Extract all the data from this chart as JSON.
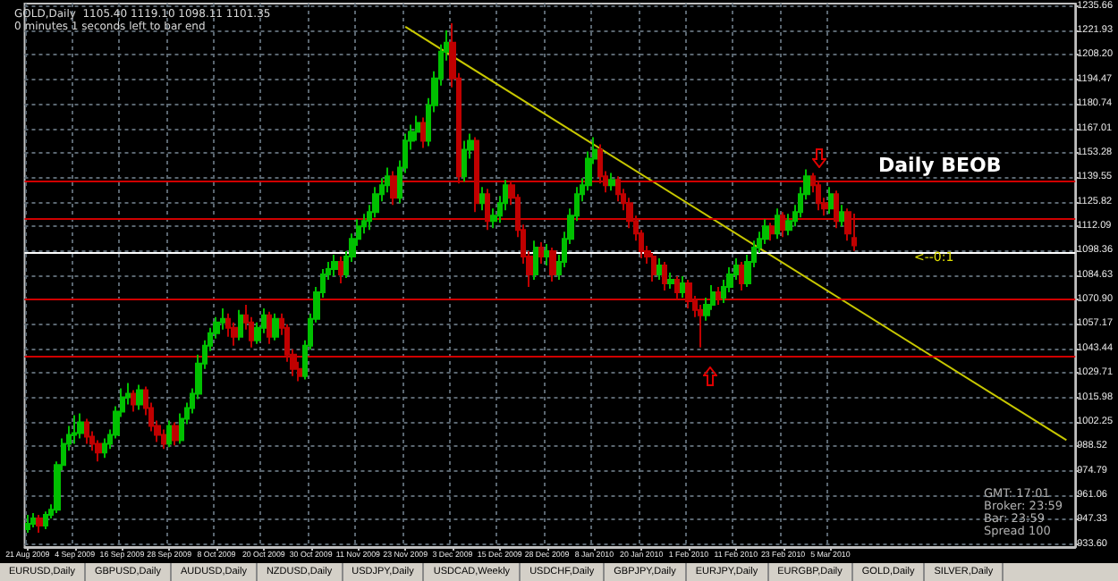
{
  "chart_data": {
    "type": "candlestick",
    "title": "GOLD,Daily  1105.40 1119.10 1098.11 1101.35",
    "subtitle": "0 minutes 1 seconds left to bar end",
    "categories": [
      "21 Aug 2009",
      null,
      null,
      null,
      null,
      null,
      null,
      null,
      "4 Sep 2009",
      null,
      null,
      null,
      null,
      null,
      null,
      null,
      "16 Sep 2009",
      null,
      null,
      null,
      null,
      null,
      null,
      null,
      "28 Sep 2009",
      null,
      null,
      null,
      null,
      null,
      null,
      null,
      "8 Oct 2009",
      null,
      null,
      null,
      null,
      null,
      null,
      null,
      "20 Oct 2009",
      null,
      null,
      null,
      null,
      null,
      null,
      null,
      "30 Oct 2009",
      null,
      null,
      null,
      null,
      null,
      null,
      null,
      "11 Nov 2009",
      null,
      null,
      null,
      null,
      null,
      null,
      null,
      "23 Nov 2009",
      null,
      null,
      null,
      null,
      null,
      null,
      null,
      "3 Dec 2009",
      null,
      null,
      null,
      null,
      null,
      null,
      null,
      "15 Dec 2009",
      null,
      null,
      null,
      null,
      null,
      null,
      null,
      "28 Dec 2009",
      null,
      null,
      null,
      null,
      null,
      null,
      null,
      "8 Jan 2010",
      null,
      null,
      null,
      null,
      null,
      null,
      null,
      "20 Jan 2010",
      null,
      null,
      null,
      null,
      null,
      null,
      null,
      "1 Feb 2010",
      null,
      null,
      null,
      null,
      null,
      null,
      null,
      "11 Feb 2010",
      null,
      null,
      null,
      null,
      null,
      null,
      null,
      "23 Feb 2010",
      null,
      null,
      null,
      null,
      null,
      null,
      null,
      "5 Mar 2010",
      null,
      null,
      null,
      null,
      null,
      null,
      null,
      null,
      null,
      null,
      null,
      null,
      null,
      null,
      null,
      null,
      null,
      null,
      null,
      null,
      null,
      null,
      null,
      null,
      null,
      null,
      null,
      null,
      null,
      null,
      null,
      null,
      null,
      null,
      null,
      null,
      null,
      null,
      null,
      null,
      null
    ],
    "series": [
      {
        "ohlc": [
          [
            942,
            950,
            940,
            945
          ],
          [
            945,
            951,
            943,
            948
          ],
          [
            948,
            950,
            940,
            944
          ],
          [
            944,
            952,
            942,
            950
          ],
          [
            950,
            956,
            948,
            953
          ],
          [
            953,
            980,
            951,
            978
          ],
          [
            978,
            993,
            975,
            990
          ],
          [
            990,
            1000,
            986,
            995
          ],
          [
            995,
            1006,
            990,
            996
          ],
          [
            996,
            1007,
            993,
            1002
          ],
          [
            1002,
            1004,
            990,
            994
          ],
          [
            994,
            997,
            986,
            990
          ],
          [
            990,
            992,
            980,
            985
          ],
          [
            985,
            993,
            982,
            990
          ],
          [
            990,
            998,
            987,
            995
          ],
          [
            995,
            1011,
            993,
            1008
          ],
          [
            1008,
            1021,
            1005,
            1016
          ],
          [
            1016,
            1024,
            1012,
            1018
          ],
          [
            1018,
            1020,
            1008,
            1012
          ],
          [
            1012,
            1023,
            1009,
            1020
          ],
          [
            1020,
            1022,
            1006,
            1010
          ],
          [
            1010,
            1013,
            997,
            1000
          ],
          [
            1000,
            1003,
            991,
            995
          ],
          [
            995,
            998,
            987,
            990
          ],
          [
            990,
            1003,
            988,
            1000
          ],
          [
            1000,
            1002,
            989,
            992
          ],
          [
            992,
            1007,
            990,
            1004
          ],
          [
            1004,
            1013,
            1001,
            1010
          ],
          [
            1010,
            1021,
            1007,
            1018
          ],
          [
            1018,
            1040,
            1015,
            1035
          ],
          [
            1035,
            1048,
            1032,
            1045
          ],
          [
            1045,
            1055,
            1042,
            1052
          ],
          [
            1052,
            1061,
            1049,
            1058
          ],
          [
            1058,
            1066,
            1054,
            1060
          ],
          [
            1060,
            1063,
            1050,
            1055
          ],
          [
            1055,
            1058,
            1045,
            1050
          ],
          [
            1050,
            1065,
            1048,
            1062
          ],
          [
            1062,
            1068,
            1054,
            1058
          ],
          [
            1058,
            1061,
            1044,
            1048
          ],
          [
            1048,
            1058,
            1046,
            1055
          ],
          [
            1055,
            1066,
            1052,
            1062
          ],
          [
            1062,
            1064,
            1046,
            1050
          ],
          [
            1050,
            1063,
            1048,
            1060
          ],
          [
            1060,
            1063,
            1051,
            1055
          ],
          [
            1055,
            1057,
            1036,
            1040
          ],
          [
            1040,
            1043,
            1028,
            1032
          ],
          [
            1032,
            1036,
            1025,
            1028
          ],
          [
            1028,
            1048,
            1026,
            1045
          ],
          [
            1045,
            1063,
            1043,
            1060
          ],
          [
            1060,
            1078,
            1058,
            1075
          ],
          [
            1075,
            1088,
            1072,
            1085
          ],
          [
            1085,
            1092,
            1082,
            1088
          ],
          [
            1088,
            1096,
            1084,
            1092
          ],
          [
            1092,
            1095,
            1080,
            1085
          ],
          [
            1085,
            1098,
            1083,
            1095
          ],
          [
            1095,
            1108,
            1092,
            1105
          ],
          [
            1105,
            1116,
            1101,
            1112
          ],
          [
            1112,
            1119,
            1108,
            1115
          ],
          [
            1115,
            1124,
            1110,
            1120
          ],
          [
            1120,
            1134,
            1117,
            1130
          ],
          [
            1130,
            1139,
            1126,
            1135
          ],
          [
            1135,
            1145,
            1131,
            1140
          ],
          [
            1140,
            1143,
            1124,
            1128
          ],
          [
            1128,
            1149,
            1125,
            1145
          ],
          [
            1145,
            1164,
            1142,
            1160
          ],
          [
            1160,
            1169,
            1155,
            1165
          ],
          [
            1165,
            1174,
            1160,
            1170
          ],
          [
            1170,
            1173,
            1156,
            1160
          ],
          [
            1160,
            1184,
            1157,
            1180
          ],
          [
            1180,
            1199,
            1176,
            1195
          ],
          [
            1195,
            1214,
            1191,
            1210
          ],
          [
            1210,
            1222,
            1205,
            1215
          ],
          [
            1215,
            1226,
            1190,
            1195
          ],
          [
            1195,
            1198,
            1136,
            1140
          ],
          [
            1140,
            1160,
            1137,
            1155
          ],
          [
            1155,
            1164,
            1150,
            1160
          ],
          [
            1160,
            1162,
            1120,
            1125
          ],
          [
            1125,
            1134,
            1121,
            1130
          ],
          [
            1130,
            1133,
            1110,
            1115
          ],
          [
            1115,
            1122,
            1111,
            1118
          ],
          [
            1118,
            1129,
            1114,
            1125
          ],
          [
            1125,
            1138,
            1121,
            1135
          ],
          [
            1135,
            1137,
            1124,
            1128
          ],
          [
            1128,
            1130,
            1106,
            1110
          ],
          [
            1110,
            1113,
            1091,
            1095
          ],
          [
            1095,
            1098,
            1078,
            1085
          ],
          [
            1085,
            1104,
            1082,
            1100
          ],
          [
            1100,
            1103,
            1091,
            1095
          ],
          [
            1095,
            1102,
            1090,
            1098
          ],
          [
            1098,
            1100,
            1081,
            1085
          ],
          [
            1085,
            1096,
            1082,
            1092
          ],
          [
            1092,
            1109,
            1089,
            1105
          ],
          [
            1105,
            1122,
            1102,
            1118
          ],
          [
            1118,
            1134,
            1115,
            1130
          ],
          [
            1130,
            1139,
            1126,
            1135
          ],
          [
            1135,
            1154,
            1132,
            1150
          ],
          [
            1150,
            1162,
            1147,
            1155
          ],
          [
            1155,
            1158,
            1136,
            1140
          ],
          [
            1140,
            1143,
            1131,
            1135
          ],
          [
            1135,
            1142,
            1132,
            1138
          ],
          [
            1138,
            1140,
            1126,
            1130
          ],
          [
            1130,
            1133,
            1121,
            1125
          ],
          [
            1125,
            1128,
            1111,
            1115
          ],
          [
            1115,
            1118,
            1104,
            1108
          ],
          [
            1108,
            1110,
            1094,
            1098
          ],
          [
            1098,
            1101,
            1091,
            1095
          ],
          [
            1095,
            1097,
            1081,
            1085
          ],
          [
            1085,
            1094,
            1082,
            1090
          ],
          [
            1090,
            1092,
            1076,
            1080
          ],
          [
            1080,
            1086,
            1077,
            1082
          ],
          [
            1082,
            1084,
            1071,
            1075
          ],
          [
            1075,
            1084,
            1072,
            1080
          ],
          [
            1080,
            1082,
            1066,
            1070
          ],
          [
            1070,
            1073,
            1061,
            1065
          ],
          [
            1065,
            1068,
            1044,
            1062
          ],
          [
            1062,
            1072,
            1059,
            1068
          ],
          [
            1068,
            1079,
            1065,
            1075
          ],
          [
            1075,
            1078,
            1068,
            1072
          ],
          [
            1072,
            1082,
            1069,
            1078
          ],
          [
            1078,
            1089,
            1075,
            1085
          ],
          [
            1085,
            1094,
            1082,
            1090
          ],
          [
            1090,
            1092,
            1076,
            1080
          ],
          [
            1080,
            1096,
            1078,
            1092
          ],
          [
            1092,
            1104,
            1089,
            1100
          ],
          [
            1100,
            1109,
            1097,
            1105
          ],
          [
            1105,
            1116,
            1102,
            1112
          ],
          [
            1112,
            1114,
            1104,
            1108
          ],
          [
            1108,
            1122,
            1105,
            1118
          ],
          [
            1118,
            1120,
            1106,
            1110
          ],
          [
            1110,
            1119,
            1107,
            1115
          ],
          [
            1115,
            1124,
            1112,
            1120
          ],
          [
            1120,
            1134,
            1117,
            1130
          ],
          [
            1130,
            1144,
            1127,
            1140
          ],
          [
            1140,
            1142,
            1131,
            1135
          ],
          [
            1135,
            1137,
            1121,
            1125
          ],
          [
            1125,
            1128,
            1118,
            1122
          ],
          [
            1122,
            1134,
            1119,
            1130
          ],
          [
            1130,
            1132,
            1111,
            1115
          ],
          [
            1115,
            1124,
            1112,
            1120
          ],
          [
            1120,
            1122,
            1104,
            1108
          ],
          [
            1105.4,
            1119.1,
            1098.11,
            1101.35
          ],
          null,
          null,
          null,
          null,
          null,
          null,
          null,
          null,
          null,
          null,
          null,
          null,
          null,
          null,
          null,
          null,
          null,
          null,
          null,
          null,
          null,
          null,
          null,
          null,
          null,
          null,
          null,
          null,
          null,
          null,
          null,
          null,
          null,
          null,
          null,
          null,
          null
        ],
        "colors": [
          "#00c000",
          "#00c000",
          "#c00000",
          "#00c000",
          "#00c000",
          "#00c000",
          "#00c000",
          "#00c000",
          "#00c000",
          "#00c000",
          "#c00000",
          "#c00000",
          "#c00000",
          "#00c000",
          "#00c000",
          "#00c000",
          "#00c000",
          "#00c000",
          "#c00000",
          "#00c000",
          "#c00000",
          "#c00000",
          "#c00000",
          "#c00000",
          "#00c000",
          "#c00000",
          "#00c000",
          "#00c000",
          "#00c000",
          "#00c000",
          "#00c000",
          "#00c000",
          "#00c000",
          "#00c000",
          "#c00000",
          "#c00000",
          "#00c000",
          "#c00000",
          "#c00000",
          "#00c000",
          "#00c000",
          "#c00000",
          "#00c000",
          "#c00000",
          "#c00000",
          "#c00000",
          "#c00000",
          "#00c000",
          "#00c000",
          "#00c000",
          "#00c000",
          "#00c000",
          "#00c000",
          "#c00000",
          "#00c000",
          "#00c000",
          "#00c000",
          "#00c000",
          "#00c000",
          "#00c000",
          "#00c000",
          "#00c000",
          "#c00000",
          "#00c000",
          "#00c000",
          "#00c000",
          "#00c000",
          "#c00000",
          "#00c000",
          "#00c000",
          "#00c000",
          "#00c000",
          "#c00000",
          "#c00000",
          "#00c000",
          "#00c000",
          "#c00000",
          "#00c000",
          "#c00000",
          "#00c000",
          "#00c000",
          "#00c000",
          "#c00000",
          "#c00000",
          "#c00000",
          "#c00000",
          "#00c000",
          "#c00000",
          "#00c000",
          "#c00000",
          "#00c000",
          "#00c000",
          "#00c000",
          "#00c000",
          "#00c000",
          "#00c000",
          "#00c000",
          "#c00000",
          "#c00000",
          "#00c000",
          "#c00000",
          "#c00000",
          "#c00000",
          "#c00000",
          "#c00000",
          "#c00000",
          "#c00000",
          "#00c000",
          "#c00000",
          "#00c000",
          "#c00000",
          "#00c000",
          "#c00000",
          "#c00000",
          "#c00000",
          "#00c000",
          "#00c000",
          "#c00000",
          "#00c000",
          "#00c000",
          "#00c000",
          "#c00000",
          "#00c000",
          "#00c000",
          "#00c000",
          "#00c000",
          "#c00000",
          "#00c000",
          "#c00000",
          "#00c000",
          "#00c000",
          "#00c000",
          "#00c000",
          "#c00000",
          "#c00000",
          "#c00000",
          "#00c000",
          "#c00000",
          "#00c000",
          "#c00000",
          "#c00000",
          null,
          null,
          null,
          null,
          null,
          null,
          null,
          null,
          null,
          null,
          null,
          null,
          null,
          null,
          null,
          null,
          null,
          null,
          null,
          null,
          null,
          null,
          null,
          null,
          null,
          null,
          null,
          null,
          null,
          null,
          null,
          null,
          null,
          null,
          null,
          null,
          null
        ]
      },
      {
        "type": "line",
        "color": "#c8c800",
        "values": [
          null,
          null,
          null,
          null,
          null,
          null,
          null,
          null,
          null,
          null,
          null,
          null,
          null,
          null,
          null,
          null,
          null,
          null,
          null,
          null,
          null,
          null,
          null,
          null,
          null,
          null,
          null,
          null,
          null,
          null,
          null,
          null,
          null,
          null,
          null,
          null,
          null,
          null,
          null,
          null,
          null,
          null,
          null,
          null,
          null,
          null,
          null,
          null,
          null,
          null,
          null,
          null,
          null,
          null,
          null,
          null,
          null,
          null,
          null,
          null,
          null,
          null,
          null,
          null,
          1224,
          null,
          null,
          null,
          null,
          null,
          null,
          null,
          null,
          null,
          null,
          null,
          null,
          null,
          null,
          null,
          null,
          null,
          null,
          null,
          null,
          null,
          null,
          null,
          null,
          null,
          null,
          null,
          null,
          null,
          null,
          null,
          null,
          null,
          null,
          null,
          null,
          null,
          null,
          null,
          null,
          null,
          null,
          null,
          null,
          null,
          null,
          null,
          null,
          null,
          null,
          null,
          null,
          null,
          null,
          null,
          null,
          null,
          null,
          null,
          null,
          null,
          null,
          null,
          null,
          null,
          null,
          null,
          null,
          null,
          null,
          null,
          null,
          null,
          null,
          null,
          null,
          null,
          null,
          null,
          null,
          null,
          null,
          null,
          null,
          null,
          null,
          null,
          null,
          null,
          null,
          null,
          null,
          null,
          null,
          null,
          null,
          null,
          null,
          null,
          null,
          null,
          null,
          null,
          null,
          null,
          null,
          null,
          null,
          null,
          null,
          null,
          992,
          null
        ]
      }
    ],
    "ylim": [
      932,
      1237
    ],
    "yticks": [
      {
        "value": 933.6,
        "label": "933.60"
      },
      {
        "value": 947.33,
        "label": "947.33"
      },
      {
        "value": 961.06,
        "label": "961.06"
      },
      {
        "value": 974.79,
        "label": "974.79"
      },
      {
        "value": 988.52,
        "label": "988.52"
      },
      {
        "value": 1002.25,
        "label": "1002.25"
      },
      {
        "value": 1015.98,
        "label": "1015.98"
      },
      {
        "value": 1029.71,
        "label": "1029.71"
      },
      {
        "value": 1043.44,
        "label": "1043.44"
      },
      {
        "value": 1057.17,
        "label": "1057.17"
      },
      {
        "value": 1070.9,
        "label": "1070.90"
      },
      {
        "value": 1084.63,
        "label": "1084.63"
      },
      {
        "value": 1098.36,
        "label": "1098.36"
      },
      {
        "value": 1112.09,
        "label": "1112.09"
      },
      {
        "value": 1125.82,
        "label": "1125.82"
      },
      {
        "value": 1139.55,
        "label": "1139.55"
      },
      {
        "value": 1153.28,
        "label": "1153.28"
      },
      {
        "value": 1167.01,
        "label": "1167.01"
      },
      {
        "value": 1180.74,
        "label": "1180.74"
      },
      {
        "value": 1194.47,
        "label": "1194.47"
      },
      {
        "value": 1208.2,
        "label": "1208.20"
      },
      {
        "value": 1221.93,
        "label": "1221.93"
      },
      {
        "value": 1235.66,
        "label": "1235.66"
      }
    ],
    "ref_lines": [
      {
        "axis": "y",
        "value": 1137,
        "color": "#d00000"
      },
      {
        "axis": "y",
        "value": 1116,
        "color": "#d00000"
      },
      {
        "axis": "y",
        "value": 1097,
        "color": "#ffffff"
      },
      {
        "axis": "y",
        "value": 1071,
        "color": "#d00000"
      },
      {
        "axis": "y",
        "value": 1039,
        "color": "#d00000"
      }
    ],
    "grid": true,
    "annotations": [
      "Daily BEOB",
      "<--0:1",
      "GMT: 17:01",
      "Broker: 23:59",
      "Bar: 23:59",
      "Spread 100",
      "EURUSD,Daily",
      "GBPUSD,Daily",
      "AUDUSD,Daily",
      "NZDUSD,Daily",
      "USDJPY,Daily",
      "USDCAD,Weekly",
      "USDCHF,Daily",
      "GBPJPY,Daily",
      "EURJPY,Daily",
      "EURGBP,Daily",
      "GOLD,Daily",
      "SILVER,Daily"
    ]
  }
}
